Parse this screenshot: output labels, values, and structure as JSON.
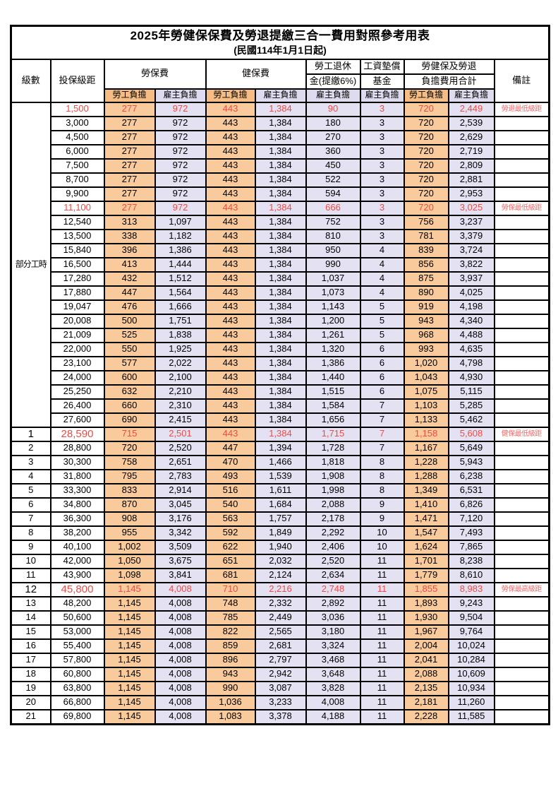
{
  "title": "2025年勞健保保費及勞退提繳三合一費用對照參考用表",
  "subtitle": "(民國114年1月1日起)",
  "header": {
    "level": "級數",
    "bracket": "投保級距",
    "labor_group": "勞保費",
    "health_group": "健保費",
    "pension_line1": "勞工退休",
    "pension_line2": "金(提繳6%)",
    "fund_line1": "工資墊償",
    "fund_line2": "基金",
    "total_line1": "勞健保及勞退",
    "total_line2": "負擔費用合計",
    "note": "備註",
    "employee": "勞工負擔",
    "employer": "雇主負擔"
  },
  "part_time_label": "部分工時",
  "part_time_rowspan": 23,
  "colors": {
    "employee_header_bg": "#F5BD84",
    "employer_header_bg": "#DEDBEE",
    "employee_cell_bg": "#F8CA9C",
    "employer_cell_bg": "#E4E2F2",
    "highlight_text": "#EE4B44",
    "note_text": "#F56B6B",
    "border": "#000000"
  },
  "rows": [
    {
      "bracket": "1,500",
      "li_emp": "277",
      "li_er": "972",
      "hi_emp": "443",
      "hi_er": "1,384",
      "pension": "90",
      "fund": "3",
      "sum_emp": "720",
      "sum_er": "2,449",
      "note": "勞退最低級距",
      "highlight": true
    },
    {
      "bracket": "3,000",
      "li_emp": "277",
      "li_er": "972",
      "hi_emp": "443",
      "hi_er": "1,384",
      "pension": "180",
      "fund": "3",
      "sum_emp": "720",
      "sum_er": "2,539"
    },
    {
      "bracket": "4,500",
      "li_emp": "277",
      "li_er": "972",
      "hi_emp": "443",
      "hi_er": "1,384",
      "pension": "270",
      "fund": "3",
      "sum_emp": "720",
      "sum_er": "2,629"
    },
    {
      "bracket": "6,000",
      "li_emp": "277",
      "li_er": "972",
      "hi_emp": "443",
      "hi_er": "1,384",
      "pension": "360",
      "fund": "3",
      "sum_emp": "720",
      "sum_er": "2,719"
    },
    {
      "bracket": "7,500",
      "li_emp": "277",
      "li_er": "972",
      "hi_emp": "443",
      "hi_er": "1,384",
      "pension": "450",
      "fund": "3",
      "sum_emp": "720",
      "sum_er": "2,809"
    },
    {
      "bracket": "8,700",
      "li_emp": "277",
      "li_er": "972",
      "hi_emp": "443",
      "hi_er": "1,384",
      "pension": "522",
      "fund": "3",
      "sum_emp": "720",
      "sum_er": "2,881"
    },
    {
      "bracket": "9,900",
      "li_emp": "277",
      "li_er": "972",
      "hi_emp": "443",
      "hi_er": "1,384",
      "pension": "594",
      "fund": "3",
      "sum_emp": "720",
      "sum_er": "2,953"
    },
    {
      "bracket": "11,100",
      "li_emp": "277",
      "li_er": "972",
      "hi_emp": "443",
      "hi_er": "1,384",
      "pension": "666",
      "fund": "3",
      "sum_emp": "720",
      "sum_er": "3,025",
      "note": "勞保最低級距",
      "highlight": true
    },
    {
      "bracket": "12,540",
      "li_emp": "313",
      "li_er": "1,097",
      "hi_emp": "443",
      "hi_er": "1,384",
      "pension": "752",
      "fund": "3",
      "sum_emp": "756",
      "sum_er": "3,237"
    },
    {
      "bracket": "13,500",
      "li_emp": "338",
      "li_er": "1,182",
      "hi_emp": "443",
      "hi_er": "1,384",
      "pension": "810",
      "fund": "3",
      "sum_emp": "781",
      "sum_er": "3,379"
    },
    {
      "bracket": "15,840",
      "li_emp": "396",
      "li_er": "1,386",
      "hi_emp": "443",
      "hi_er": "1,384",
      "pension": "950",
      "fund": "4",
      "sum_emp": "839",
      "sum_er": "3,724"
    },
    {
      "bracket": "16,500",
      "li_emp": "413",
      "li_er": "1,444",
      "hi_emp": "443",
      "hi_er": "1,384",
      "pension": "990",
      "fund": "4",
      "sum_emp": "856",
      "sum_er": "3,822"
    },
    {
      "bracket": "17,280",
      "li_emp": "432",
      "li_er": "1,512",
      "hi_emp": "443",
      "hi_er": "1,384",
      "pension": "1,037",
      "fund": "4",
      "sum_emp": "875",
      "sum_er": "3,937"
    },
    {
      "bracket": "17,880",
      "li_emp": "447",
      "li_er": "1,564",
      "hi_emp": "443",
      "hi_er": "1,384",
      "pension": "1,073",
      "fund": "4",
      "sum_emp": "890",
      "sum_er": "4,025"
    },
    {
      "bracket": "19,047",
      "li_emp": "476",
      "li_er": "1,666",
      "hi_emp": "443",
      "hi_er": "1,384",
      "pension": "1,143",
      "fund": "5",
      "sum_emp": "919",
      "sum_er": "4,198"
    },
    {
      "bracket": "20,008",
      "li_emp": "500",
      "li_er": "1,751",
      "hi_emp": "443",
      "hi_er": "1,384",
      "pension": "1,200",
      "fund": "5",
      "sum_emp": "943",
      "sum_er": "4,340"
    },
    {
      "bracket": "21,009",
      "li_emp": "525",
      "li_er": "1,838",
      "hi_emp": "443",
      "hi_er": "1,384",
      "pension": "1,261",
      "fund": "5",
      "sum_emp": "968",
      "sum_er": "4,488"
    },
    {
      "bracket": "22,000",
      "li_emp": "550",
      "li_er": "1,925",
      "hi_emp": "443",
      "hi_er": "1,384",
      "pension": "1,320",
      "fund": "6",
      "sum_emp": "993",
      "sum_er": "4,635"
    },
    {
      "bracket": "23,100",
      "li_emp": "577",
      "li_er": "2,022",
      "hi_emp": "443",
      "hi_er": "1,384",
      "pension": "1,386",
      "fund": "6",
      "sum_emp": "1,020",
      "sum_er": "4,798"
    },
    {
      "bracket": "24,000",
      "li_emp": "600",
      "li_er": "2,100",
      "hi_emp": "443",
      "hi_er": "1,384",
      "pension": "1,440",
      "fund": "6",
      "sum_emp": "1,043",
      "sum_er": "4,930"
    },
    {
      "bracket": "25,250",
      "li_emp": "632",
      "li_er": "2,210",
      "hi_emp": "443",
      "hi_er": "1,384",
      "pension": "1,515",
      "fund": "6",
      "sum_emp": "1,075",
      "sum_er": "5,115"
    },
    {
      "bracket": "26,400",
      "li_emp": "660",
      "li_er": "2,310",
      "hi_emp": "443",
      "hi_er": "1,384",
      "pension": "1,584",
      "fund": "7",
      "sum_emp": "1,103",
      "sum_er": "5,285"
    },
    {
      "bracket": "27,600",
      "li_emp": "690",
      "li_er": "2,415",
      "hi_emp": "443",
      "hi_er": "1,384",
      "pension": "1,656",
      "fund": "7",
      "sum_emp": "1,133",
      "sum_er": "5,462"
    },
    {
      "level": "1",
      "bracket": "28,590",
      "li_emp": "715",
      "li_er": "2,501",
      "hi_emp": "443",
      "hi_er": "1,384",
      "pension": "1,715",
      "fund": "7",
      "sum_emp": "1,158",
      "sum_er": "5,608",
      "note": "健保最低級距",
      "highlight": true,
      "big": true
    },
    {
      "level": "2",
      "bracket": "28,800",
      "li_emp": "720",
      "li_er": "2,520",
      "hi_emp": "447",
      "hi_er": "1,394",
      "pension": "1,728",
      "fund": "7",
      "sum_emp": "1,167",
      "sum_er": "5,649"
    },
    {
      "level": "3",
      "bracket": "30,300",
      "li_emp": "758",
      "li_er": "2,651",
      "hi_emp": "470",
      "hi_er": "1,466",
      "pension": "1,818",
      "fund": "8",
      "sum_emp": "1,228",
      "sum_er": "5,943"
    },
    {
      "level": "4",
      "bracket": "31,800",
      "li_emp": "795",
      "li_er": "2,783",
      "hi_emp": "493",
      "hi_er": "1,539",
      "pension": "1,908",
      "fund": "8",
      "sum_emp": "1,288",
      "sum_er": "6,238"
    },
    {
      "level": "5",
      "bracket": "33,300",
      "li_emp": "833",
      "li_er": "2,914",
      "hi_emp": "516",
      "hi_er": "1,611",
      "pension": "1,998",
      "fund": "8",
      "sum_emp": "1,349",
      "sum_er": "6,531"
    },
    {
      "level": "6",
      "bracket": "34,800",
      "li_emp": "870",
      "li_er": "3,045",
      "hi_emp": "540",
      "hi_er": "1,684",
      "pension": "2,088",
      "fund": "9",
      "sum_emp": "1,410",
      "sum_er": "6,826"
    },
    {
      "level": "7",
      "bracket": "36,300",
      "li_emp": "908",
      "li_er": "3,176",
      "hi_emp": "563",
      "hi_er": "1,757",
      "pension": "2,178",
      "fund": "9",
      "sum_emp": "1,471",
      "sum_er": "7,120"
    },
    {
      "level": "8",
      "bracket": "38,200",
      "li_emp": "955",
      "li_er": "3,342",
      "hi_emp": "592",
      "hi_er": "1,849",
      "pension": "2,292",
      "fund": "10",
      "sum_emp": "1,547",
      "sum_er": "7,493"
    },
    {
      "level": "9",
      "bracket": "40,100",
      "li_emp": "1,002",
      "li_er": "3,509",
      "hi_emp": "622",
      "hi_er": "1,940",
      "pension": "2,406",
      "fund": "10",
      "sum_emp": "1,624",
      "sum_er": "7,865"
    },
    {
      "level": "10",
      "bracket": "42,000",
      "li_emp": "1,050",
      "li_er": "3,675",
      "hi_emp": "651",
      "hi_er": "2,032",
      "pension": "2,520",
      "fund": "11",
      "sum_emp": "1,701",
      "sum_er": "8,238"
    },
    {
      "level": "11",
      "bracket": "43,900",
      "li_emp": "1,098",
      "li_er": "3,841",
      "hi_emp": "681",
      "hi_er": "2,124",
      "pension": "2,634",
      "fund": "11",
      "sum_emp": "1,779",
      "sum_er": "8,610"
    },
    {
      "level": "12",
      "bracket": "45,800",
      "li_emp": "1,145",
      "li_er": "4,008",
      "hi_emp": "710",
      "hi_er": "2,216",
      "pension": "2,748",
      "fund": "11",
      "sum_emp": "1,855",
      "sum_er": "8,983",
      "note": "勞保最高級距",
      "highlight": true,
      "big": true
    },
    {
      "level": "13",
      "bracket": "48,200",
      "li_emp": "1,145",
      "li_er": "4,008",
      "hi_emp": "748",
      "hi_er": "2,332",
      "pension": "2,892",
      "fund": "11",
      "sum_emp": "1,893",
      "sum_er": "9,243"
    },
    {
      "level": "14",
      "bracket": "50,600",
      "li_emp": "1,145",
      "li_er": "4,008",
      "hi_emp": "785",
      "hi_er": "2,449",
      "pension": "3,036",
      "fund": "11",
      "sum_emp": "1,930",
      "sum_er": "9,504"
    },
    {
      "level": "15",
      "bracket": "53,000",
      "li_emp": "1,145",
      "li_er": "4,008",
      "hi_emp": "822",
      "hi_er": "2,565",
      "pension": "3,180",
      "fund": "11",
      "sum_emp": "1,967",
      "sum_er": "9,764"
    },
    {
      "level": "16",
      "bracket": "55,400",
      "li_emp": "1,145",
      "li_er": "4,008",
      "hi_emp": "859",
      "hi_er": "2,681",
      "pension": "3,324",
      "fund": "11",
      "sum_emp": "2,004",
      "sum_er": "10,024"
    },
    {
      "level": "17",
      "bracket": "57,800",
      "li_emp": "1,145",
      "li_er": "4,008",
      "hi_emp": "896",
      "hi_er": "2,797",
      "pension": "3,468",
      "fund": "11",
      "sum_emp": "2,041",
      "sum_er": "10,284"
    },
    {
      "level": "18",
      "bracket": "60,800",
      "li_emp": "1,145",
      "li_er": "4,008",
      "hi_emp": "943",
      "hi_er": "2,942",
      "pension": "3,648",
      "fund": "11",
      "sum_emp": "2,088",
      "sum_er": "10,609"
    },
    {
      "level": "19",
      "bracket": "63,800",
      "li_emp": "1,145",
      "li_er": "4,008",
      "hi_emp": "990",
      "hi_er": "3,087",
      "pension": "3,828",
      "fund": "11",
      "sum_emp": "2,135",
      "sum_er": "10,934"
    },
    {
      "level": "20",
      "bracket": "66,800",
      "li_emp": "1,145",
      "li_er": "4,008",
      "hi_emp": "1,036",
      "hi_er": "3,233",
      "pension": "4,008",
      "fund": "11",
      "sum_emp": "2,181",
      "sum_er": "11,260"
    },
    {
      "level": "21",
      "bracket": "69,800",
      "li_emp": "1,145",
      "li_er": "4,008",
      "hi_emp": "1,083",
      "hi_er": "3,378",
      "pension": "4,188",
      "fund": "11",
      "sum_emp": "2,228",
      "sum_er": "11,585"
    }
  ]
}
